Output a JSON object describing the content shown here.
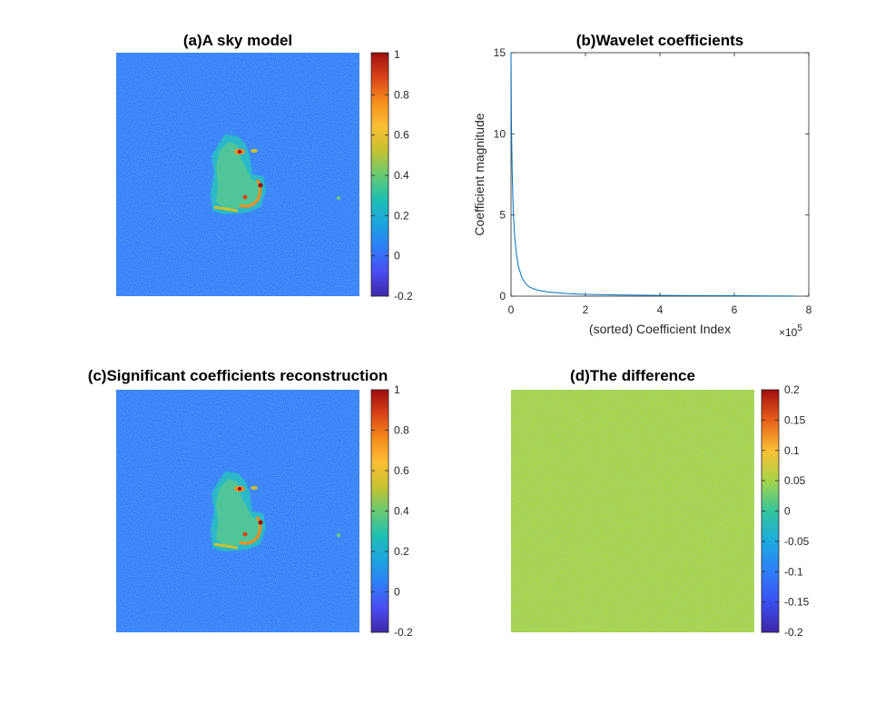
{
  "colors": {
    "colormap": [
      "#3e26a8",
      "#4a4df2",
      "#2f7df7",
      "#1ca5df",
      "#1fbfb0",
      "#6acb73",
      "#c7c230",
      "#fbbf35",
      "#f68c1c",
      "#d9431a",
      "#a10c0c"
    ],
    "background_blue": "#2f7df7",
    "difference_green": "#a6d44a",
    "line_color": "#0072bd",
    "axis_color": "#262626"
  },
  "chart_data": [
    {
      "type": "heatmap",
      "title": "(a)A sky model",
      "colorbar": {
        "ticks": [
          "1",
          "0.8",
          "0.6",
          "0.4",
          "0.2",
          "0",
          "-0.2"
        ],
        "range": [
          -0.2,
          1
        ]
      }
    },
    {
      "type": "line",
      "title": "(b)Wavelet coefficients",
      "xlabel": "(sorted) Coefficient Index",
      "ylabel": "Coefficient magnitude",
      "x_exponent_label": "×10",
      "x_exponent_power": "5",
      "xlim": [
        0,
        8
      ],
      "ylim": [
        0,
        15
      ],
      "xticks": [
        "0",
        "2",
        "4",
        "6",
        "8"
      ],
      "yticks": [
        "0",
        "5",
        "10",
        "15"
      ],
      "series": [
        {
          "x": [
            0,
            0.01,
            0.03,
            0.06,
            0.1,
            0.15,
            0.2,
            0.3,
            0.4,
            0.5,
            0.7,
            1.0,
            1.5,
            2.0,
            3.0,
            4.0,
            5.0,
            6.0,
            7.0,
            7.6
          ],
          "values": [
            15,
            10.8,
            7.8,
            5.2,
            3.6,
            2.5,
            1.8,
            1.1,
            0.75,
            0.55,
            0.38,
            0.26,
            0.16,
            0.11,
            0.07,
            0.05,
            0.035,
            0.025,
            0.015,
            0.01
          ]
        }
      ]
    },
    {
      "type": "heatmap",
      "title": "(c)Significant coefficients reconstruction",
      "colorbar": {
        "ticks": [
          "1",
          "0.8",
          "0.6",
          "0.4",
          "0.2",
          "0",
          "-0.2"
        ],
        "range": [
          -0.2,
          1
        ]
      }
    },
    {
      "type": "heatmap",
      "title": "(d)The difference",
      "colorbar": {
        "ticks": [
          "0.2",
          "0.15",
          "0.1",
          "0.05",
          "0",
          "-0.05",
          "-0.1",
          "-0.15",
          "-0.2"
        ],
        "range": [
          -0.2,
          0.2
        ]
      }
    }
  ]
}
